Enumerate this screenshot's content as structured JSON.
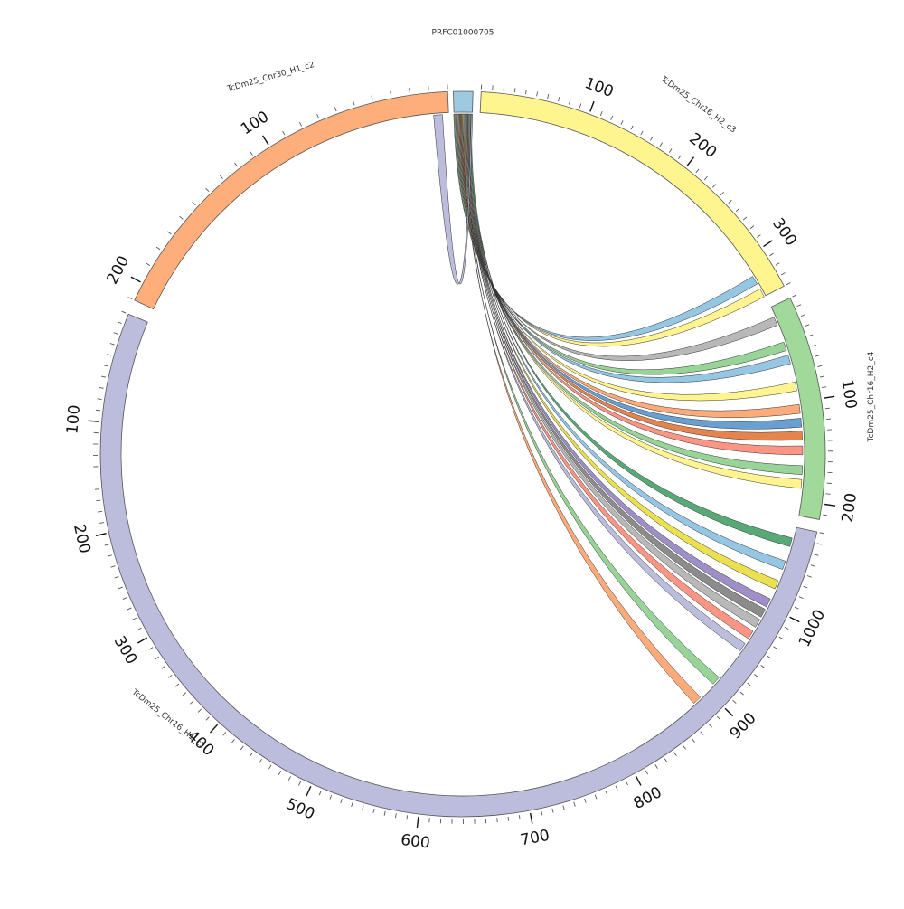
{
  "diagram": {
    "type": "circos-synteny",
    "sequences": [
      {
        "name": "PRFC01000705",
        "length": 12,
        "color": "#9ecae1",
        "ticks": []
      },
      {
        "name": "TcDm25_Chr16_H2_c3",
        "length": 340,
        "color": "#fff58f",
        "ticks": [
          "100",
          "200",
          "300"
        ]
      },
      {
        "name": "TcDm25_Chr16_H2_c4",
        "length": 215,
        "color": "#a1d99b",
        "ticks": [
          "100",
          "200"
        ]
      },
      {
        "name": "TcDm25_Chr16_H1_c1",
        "length": 1080,
        "color": "#bcbddc",
        "ticks": [
          "100",
          "200",
          "300",
          "400",
          "500",
          "600",
          "700",
          "800",
          "900",
          "1000"
        ]
      },
      {
        "name": "TcDm25_Chr30_H1_c2",
        "length": 210,
        "color": "#fdae7b",
        "ticks": [
          "100",
          "200"
        ]
      }
    ],
    "links": [
      {
        "target": "TcDm25_Chr16_H2_c3",
        "pos": 322,
        "color": "#95c6e3"
      },
      {
        "target": "TcDm25_Chr16_H2_c3",
        "pos": 336,
        "color": "#fff48f"
      },
      {
        "target": "TcDm25_Chr16_H2_c4",
        "pos": 15,
        "color": "#b8b8b8"
      },
      {
        "target": "TcDm25_Chr16_H2_c4",
        "pos": 42,
        "color": "#98d497"
      },
      {
        "target": "TcDm25_Chr16_H2_c4",
        "pos": 56,
        "color": "#95c6e3"
      },
      {
        "target": "TcDm25_Chr16_H2_c4",
        "pos": 84,
        "color": "#fff48f"
      },
      {
        "target": "TcDm25_Chr16_H2_c4",
        "pos": 107,
        "color": "#fdab7a"
      },
      {
        "target": "TcDm25_Chr16_H2_c4",
        "pos": 121,
        "color": "#6a9fd1"
      },
      {
        "target": "TcDm25_Chr16_H2_c4",
        "pos": 134,
        "color": "#e5844f"
      },
      {
        "target": "TcDm25_Chr16_H2_c4",
        "pos": 149,
        "color": "#fc9583"
      },
      {
        "target": "TcDm25_Chr16_H2_c4",
        "pos": 169,
        "color": "#98d497"
      },
      {
        "target": "TcDm25_Chr16_H2_c4",
        "pos": 183,
        "color": "#fff48f"
      },
      {
        "target": "TcDm25_Chr16_H1_c1",
        "pos": 887,
        "color": "#fdab7a"
      },
      {
        "target": "TcDm25_Chr16_H1_c1",
        "pos": 913,
        "color": "#98d497"
      },
      {
        "target": "TcDm25_Chr16_H1_c1",
        "pos": 954,
        "color": "#bcbddc"
      },
      {
        "target": "TcDm25_Chr16_H1_c1",
        "pos": 968,
        "color": "#fc9583"
      },
      {
        "target": "TcDm25_Chr16_H1_c1",
        "pos": 981,
        "color": "#b8b8b8"
      },
      {
        "target": "TcDm25_Chr16_H1_c1",
        "pos": 992,
        "color": "#8c8c8c"
      },
      {
        "target": "TcDm25_Chr16_H1_c1",
        "pos": 1003,
        "color": "#9e8fc8"
      },
      {
        "target": "TcDm25_Chr16_H1_c1",
        "pos": 1022,
        "color": "#ebe14f"
      },
      {
        "target": "TcDm25_Chr16_H1_c1",
        "pos": 1042,
        "color": "#95c6e3"
      },
      {
        "target": "TcDm25_Chr16_H1_c1",
        "pos": 1065,
        "color": "#59a978"
      },
      {
        "target": "TcDm25_Chr30_H1_c2",
        "pos": 6,
        "color": "#bcbddc"
      }
    ]
  }
}
